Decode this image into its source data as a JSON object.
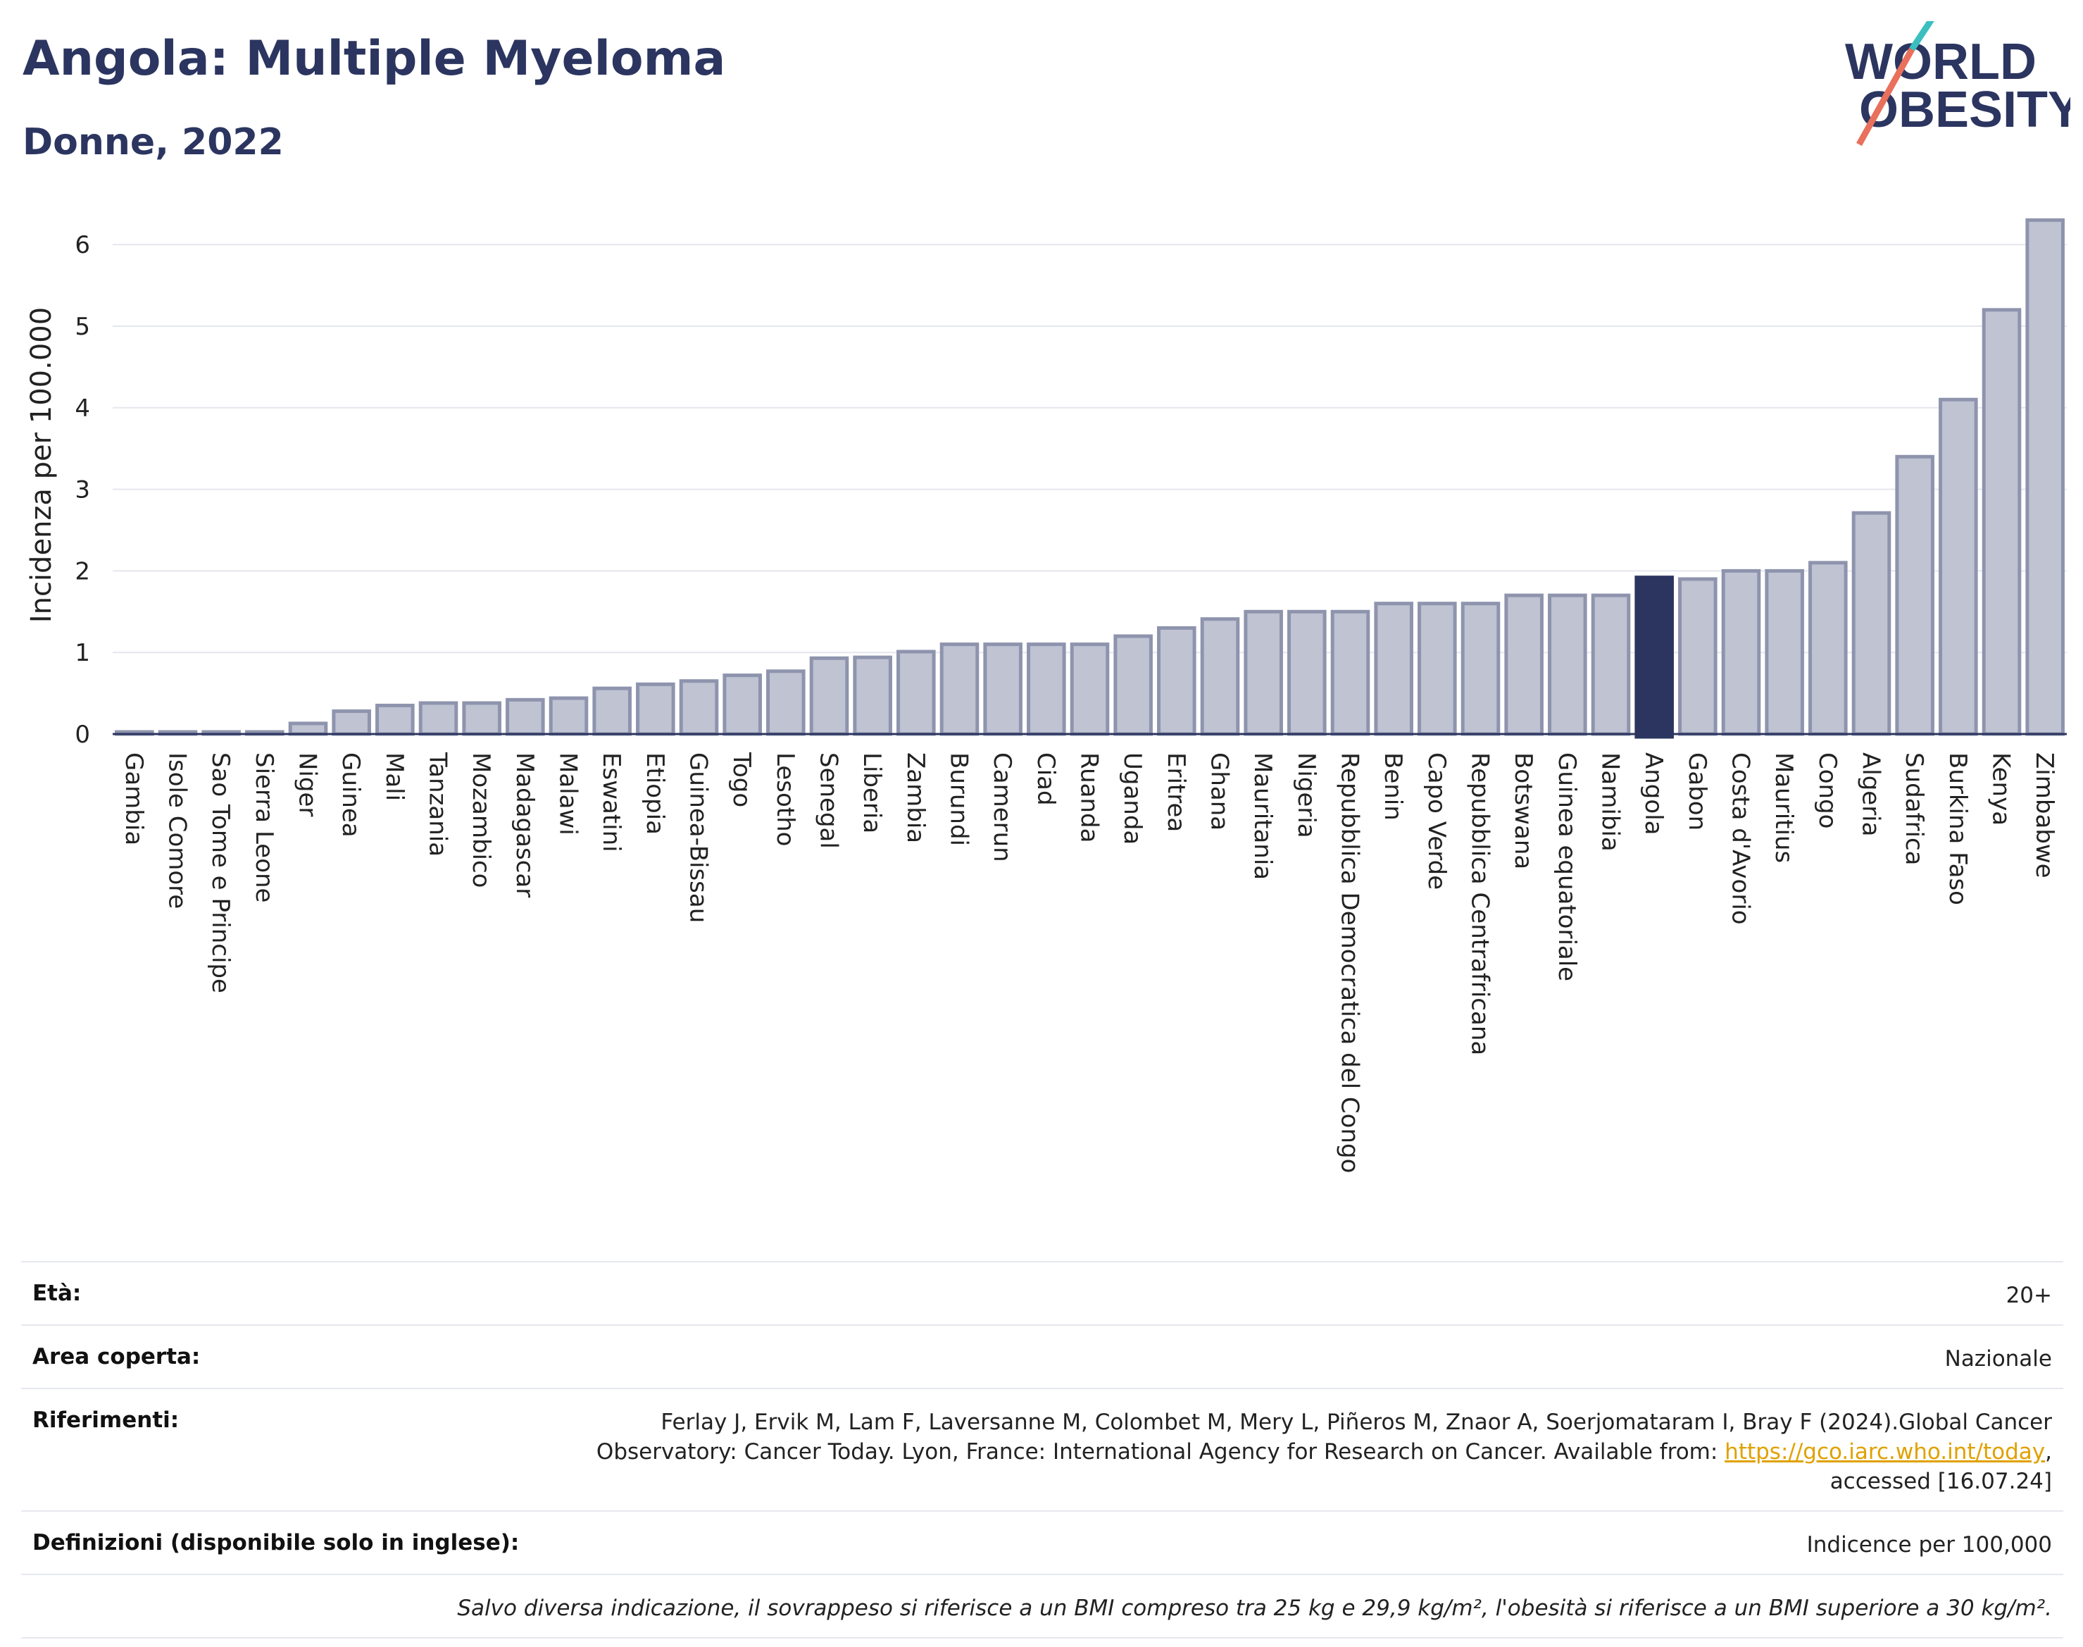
{
  "header": {
    "title": "Angola: Multiple Myeloma",
    "subtitle": "Donne, 2022",
    "logo_line1": "WORLD",
    "logo_line2": "OBESITY"
  },
  "colors": {
    "bar": "#bfc3d2",
    "bar_border": "#8e94ad",
    "highlight": "#2b3560",
    "grid": "#e5e7ee",
    "axis": "#2b3560"
  },
  "chart_data": {
    "type": "bar",
    "ylabel": "Incidenza per 100.000",
    "ylim": [
      0,
      6.5
    ],
    "yticks": [
      "0",
      "1",
      "2",
      "3",
      "4",
      "5",
      "6"
    ],
    "grid": true,
    "highlight": "Angola",
    "categories": [
      "Gambia",
      "Isole Comore",
      "Sao Tome e Principe",
      "Sierra Leone",
      "Niger",
      "Guinea",
      "Mali",
      "Tanzania",
      "Mozambico",
      "Madagascar",
      "Malawi",
      "Eswatini",
      "Etiopia",
      "Guinea-Bissau",
      "Togo",
      "Lesotho",
      "Senegal",
      "Liberia",
      "Zambia",
      "Burundi",
      "Camerun",
      "Ciad",
      "Ruanda",
      "Uganda",
      "Eritrea",
      "Ghana",
      "Mauritania",
      "Nigeria",
      "Repubblica Democratica del Congo",
      "Benin",
      "Capo Verde",
      "Repubblica Centrafricana",
      "Botswana",
      "Guinea equatoriale",
      "Namibia",
      "Angola",
      "Gabon",
      "Costa d'Avorio",
      "Mauritius",
      "Congo",
      "Algeria",
      "Sudafrica",
      "Burkina Faso",
      "Kenya",
      "Zimbabwe"
    ],
    "values": [
      0.02,
      0.02,
      0.02,
      0.02,
      0.13,
      0.28,
      0.35,
      0.38,
      0.38,
      0.42,
      0.44,
      0.56,
      0.61,
      0.65,
      0.72,
      0.77,
      0.93,
      0.94,
      1.01,
      1.1,
      1.1,
      1.1,
      1.1,
      1.2,
      1.3,
      1.41,
      1.5,
      1.5,
      1.5,
      1.6,
      1.6,
      1.6,
      1.7,
      1.7,
      1.7,
      1.92,
      1.9,
      2.0,
      2.0,
      2.1,
      2.71,
      3.4,
      4.1,
      5.2,
      6.3
    ]
  },
  "info": {
    "age_label": "Età:",
    "age_value": "20+",
    "area_label": "Area coperta:",
    "area_value": "Nazionale",
    "refs_label": "Riferimenti:",
    "refs_text1": "Ferlay J, Ervik M, Lam F, Laversanne M, Colombet M, Mery L, Piñeros M, Znaor A, Soerjomataram I, Bray F (2024).Global Cancer",
    "refs_text2": "Observatory: Cancer Today. Lyon, France: International Agency for Research on Cancer. Available from: ",
    "refs_link": "https://gco.iarc.who.int/today",
    "refs_text3": ",",
    "refs_text4": "accessed [16.07.24]",
    "defs_label": "Definizioni (disponibile solo in inglese):",
    "defs_value": "Indicence per 100,000",
    "note": "Salvo diversa indicazione, il sovrappeso si riferisce a un BMI compreso tra 25 kg e 29,9 kg/m², l'obesità si riferisce a un BMI superiore a 30 kg/m²."
  }
}
